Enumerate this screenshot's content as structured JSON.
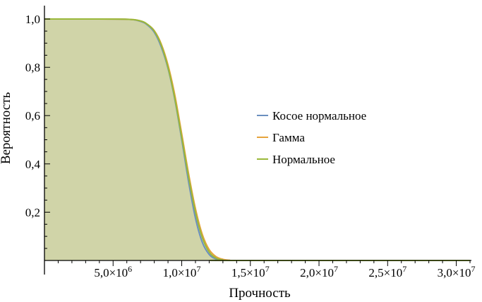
{
  "chart_data": {
    "type": "area",
    "xlabel": "Прочность",
    "ylabel": "Вероятность",
    "xlim": [
      0,
      31000000
    ],
    "ylim": [
      0,
      1.0
    ],
    "x_ticks": [
      {
        "value": 5000000,
        "label": "5,0×10",
        "exp": "6"
      },
      {
        "value": 10000000,
        "label": "1,0×10",
        "exp": "7"
      },
      {
        "value": 15000000,
        "label": "1,5×10",
        "exp": "7"
      },
      {
        "value": 20000000,
        "label": "2,0×10",
        "exp": "7"
      },
      {
        "value": 25000000,
        "label": "2,5×10",
        "exp": "7"
      },
      {
        "value": 30000000,
        "label": "3,0×10",
        "exp": "7"
      }
    ],
    "y_ticks": [
      {
        "value": 0.2,
        "label": "0,2"
      },
      {
        "value": 0.4,
        "label": "0,4"
      },
      {
        "value": 0.6,
        "label": "0,6"
      },
      {
        "value": 0.8,
        "label": "0,8"
      },
      {
        "value": 1.0,
        "label": "1,0"
      }
    ],
    "legend_position": "right-center",
    "grid": false,
    "fill_color": "#c8cb96",
    "series": [
      {
        "name": "Косое нормальное",
        "color": "#6a8fbf",
        "x": [
          0,
          3000000,
          6000000,
          7000000,
          7500000,
          8000000,
          8500000,
          9000000,
          9500000,
          10000000,
          10500000,
          11000000,
          11500000,
          12000000,
          12500000,
          13000000,
          14000000,
          31000000
        ],
        "y": [
          1.0,
          1.0,
          0.999,
          0.99,
          0.975,
          0.945,
          0.885,
          0.795,
          0.665,
          0.5,
          0.325,
          0.175,
          0.075,
          0.025,
          0.006,
          0.001,
          0.0,
          0.0
        ]
      },
      {
        "name": "Гамма",
        "color": "#e6a43c",
        "x": [
          0,
          3000000,
          6000000,
          7000000,
          7500000,
          8000000,
          8500000,
          9000000,
          9500000,
          10000000,
          10500000,
          11000000,
          11500000,
          12000000,
          12500000,
          13000000,
          13500000,
          14000000,
          31000000
        ],
        "y": [
          1.0,
          1.0,
          0.999,
          0.992,
          0.978,
          0.952,
          0.898,
          0.81,
          0.685,
          0.525,
          0.36,
          0.215,
          0.108,
          0.045,
          0.016,
          0.005,
          0.001,
          0.0,
          0.0
        ]
      },
      {
        "name": "Нормальное",
        "color": "#9ab83a",
        "x": [
          0,
          3000000,
          6000000,
          7000000,
          7500000,
          8000000,
          8500000,
          9000000,
          9500000,
          10000000,
          10500000,
          11000000,
          11500000,
          12000000,
          12500000,
          13000000,
          13500000,
          31000000
        ],
        "y": [
          1.0,
          1.0,
          0.999,
          0.992,
          0.978,
          0.95,
          0.893,
          0.8,
          0.67,
          0.51,
          0.345,
          0.2,
          0.095,
          0.035,
          0.01,
          0.002,
          0.0,
          0.0
        ]
      }
    ]
  }
}
